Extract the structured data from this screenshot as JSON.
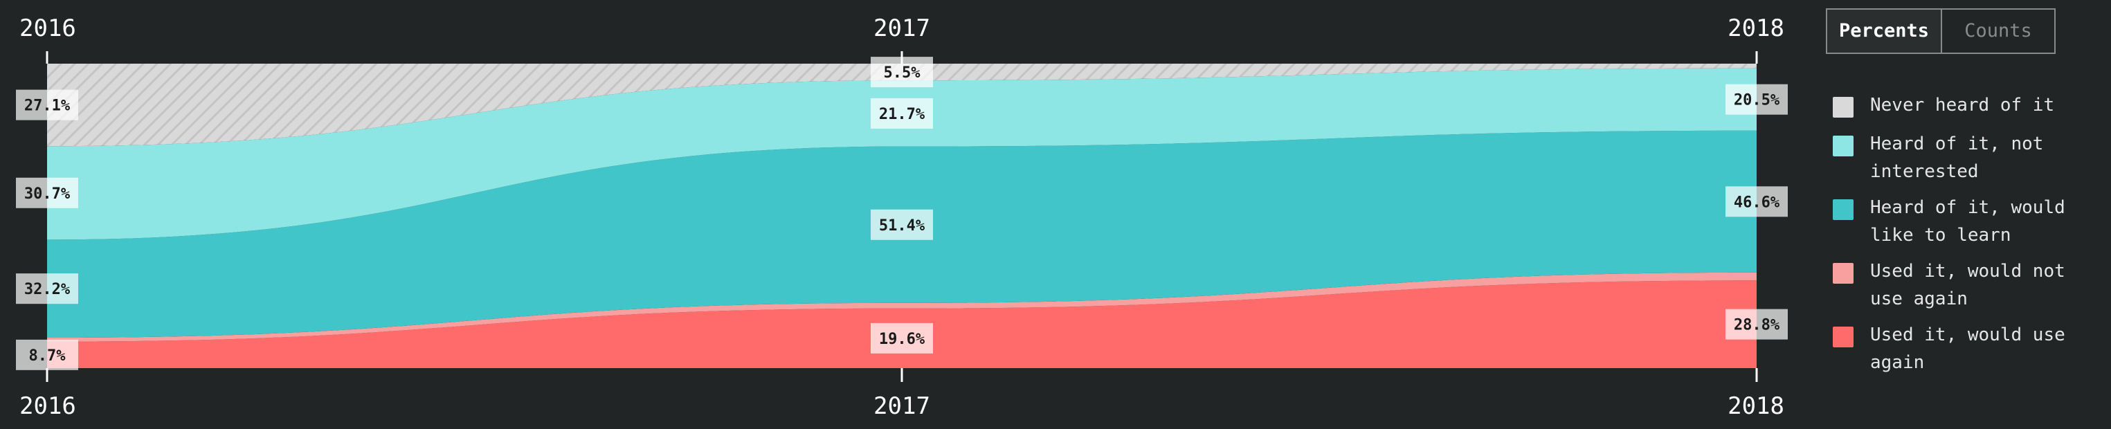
{
  "toggle": {
    "percents_label": "Percents",
    "counts_label": "Counts",
    "active": "Percents"
  },
  "legend": [
    {
      "label": "Never heard of it",
      "color": "#d9d9d9"
    },
    {
      "label": "Heard of it, not interested",
      "color": "#8de6e3"
    },
    {
      "label": "Heard of it, would like to learn",
      "color": "#42c5c8"
    },
    {
      "label": "Used it, would not use again",
      "color": "#f8a0a0"
    },
    {
      "label": "Used it, would use again",
      "color": "#ff6b6b"
    }
  ],
  "chart_data": {
    "type": "area",
    "stacked": true,
    "normalized": true,
    "x": [
      "2016",
      "2017",
      "2018"
    ],
    "series": [
      {
        "name": "Used it, would use again",
        "values": [
          8.7,
          19.6,
          28.8
        ],
        "color": "#ff6b6b",
        "labels": [
          "8.7%",
          "19.6%",
          "28.8%"
        ]
      },
      {
        "name": "Used it, would not use again",
        "values": [
          1.3,
          1.8,
          2.6
        ],
        "color": "#f8a0a0",
        "labels": [
          "",
          "",
          ""
        ]
      },
      {
        "name": "Heard of it, would like to learn",
        "values": [
          32.2,
          51.4,
          46.6
        ],
        "color": "#42c5c8",
        "labels": [
          "32.2%",
          "51.4%",
          "46.6%"
        ]
      },
      {
        "name": "Heard of it, not interested",
        "values": [
          30.7,
          21.7,
          20.5
        ],
        "color": "#8de6e3",
        "labels": [
          "30.7%",
          "21.7%",
          "20.5%"
        ]
      },
      {
        "name": "Never heard of it",
        "values": [
          27.1,
          5.5,
          1.5
        ],
        "color": "#d9d9d9",
        "labels": [
          "27.1%",
          "5.5%",
          ""
        ]
      }
    ],
    "ylim": [
      0,
      100
    ]
  }
}
